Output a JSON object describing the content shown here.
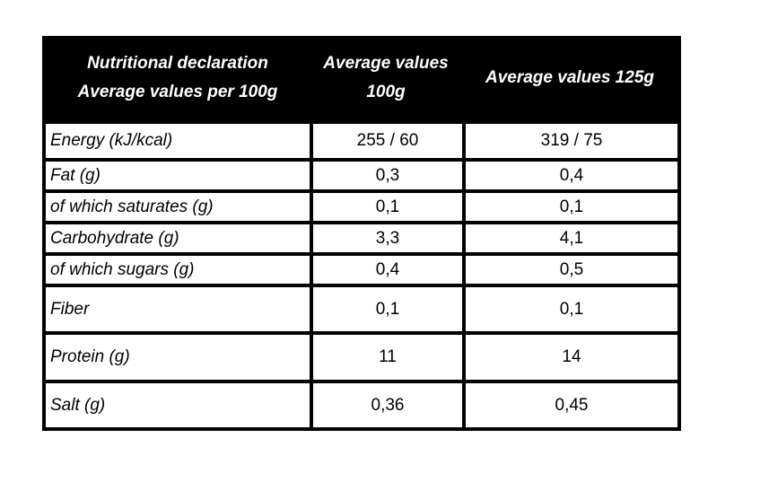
{
  "table": {
    "header": {
      "col1_line1": "Nutritional declaration",
      "col1_line2": "Average values per 100g",
      "col2_line1": "Average values",
      "col2_line2": "100g",
      "col3": "Average values 125g"
    },
    "rows": [
      {
        "label": "Energy (kJ/kcal)",
        "per100": "255 / 60",
        "per125": "319 / 75"
      },
      {
        "label": "Fat (g)",
        "per100": "0,3",
        "per125": "0,4"
      },
      {
        "label": "of which saturates (g)",
        "per100": "0,1",
        "per125": "0,1"
      },
      {
        "label": "Carbohydrate (g)",
        "per100": "3,3",
        "per125": "4,1"
      },
      {
        "label": "of which sugars (g)",
        "per100": "0,4",
        "per125": "0,5"
      },
      {
        "label": "Fiber",
        "per100": "0,1",
        "per125": "0,1"
      },
      {
        "label": "Protein (g)",
        "per100": "11",
        "per125": "14"
      },
      {
        "label": "Salt (g)",
        "per100": "0,36",
        "per125": "0,45"
      }
    ]
  }
}
